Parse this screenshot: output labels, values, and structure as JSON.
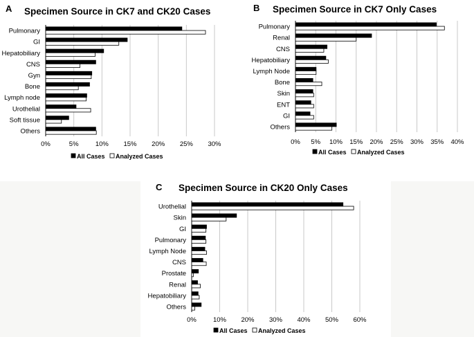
{
  "chart_data": [
    {
      "id": "A",
      "type": "bar",
      "orientation": "horizontal",
      "panel_label": "A",
      "title": "Specimen Source in CK7 and CK20 Cases",
      "categories": [
        "Pulmonary",
        "GI",
        "Hepatobiliary",
        "CNS",
        "Gyn",
        "Bone",
        "Lymph node",
        "Urothelial",
        "Soft tissue",
        "Others"
      ],
      "series": [
        {
          "name": "All Cases",
          "color": "#000000",
          "values": [
            24.2,
            14.5,
            10.3,
            8.9,
            8.2,
            7.8,
            7.3,
            5.4,
            4.1,
            8.9
          ]
        },
        {
          "name": "Analyzed Cases",
          "color": "#ffffff",
          "values": [
            28.4,
            13.0,
            8.8,
            6.1,
            8.1,
            5.8,
            7.2,
            8.0,
            2.8,
            9.0
          ]
        }
      ],
      "xlim": [
        0,
        30
      ],
      "xticks": [
        "0%",
        "5%",
        "10%",
        "15%",
        "20%",
        "25%",
        "30%"
      ],
      "legend": [
        "All Cases",
        "Analyzed Cases"
      ],
      "legend_position": "bottom",
      "grid": true
    },
    {
      "id": "B",
      "type": "bar",
      "orientation": "horizontal",
      "panel_label": "B",
      "title": "Specimen Source in CK7 Only Cases",
      "categories": [
        "Pulmonary",
        "Renal",
        "CNS",
        "Hepatobiliary",
        "Lymph Node",
        "Bone",
        "Skin",
        "ENT",
        "GI",
        "Others"
      ],
      "series": [
        {
          "name": "All Cases",
          "color": "#000000",
          "values": [
            34.8,
            18.8,
            7.8,
            7.5,
            5.1,
            4.3,
            4.3,
            3.8,
            3.6,
            10.1
          ]
        },
        {
          "name": "Analyzed Cases",
          "color": "#ffffff",
          "values": [
            36.8,
            15.0,
            7.0,
            8.1,
            5.1,
            6.5,
            4.5,
            4.5,
            4.5,
            9.0
          ]
        }
      ],
      "xlim": [
        0,
        40
      ],
      "xticks": [
        "0%",
        "5%",
        "10%",
        "15%",
        "20%",
        "25%",
        "30%",
        "35%",
        "40%"
      ],
      "legend": [
        "All Cases",
        "Analyzed Cases"
      ],
      "legend_position": "bottom",
      "grid": true
    },
    {
      "id": "C",
      "type": "bar",
      "orientation": "horizontal",
      "panel_label": "C",
      "title": "Specimen Source in CK20 Only Cases",
      "categories": [
        "Urothelial",
        "Skin",
        "GI",
        "Pulmonary",
        "Lymph Node",
        "CNS",
        "Prostate",
        "Renal",
        "Hepatobiliary",
        "Others"
      ],
      "series": [
        {
          "name": "All Cases",
          "color": "#000000",
          "values": [
            54.0,
            16.0,
            5.3,
            4.9,
            4.7,
            4.0,
            2.4,
            2.1,
            2.3,
            3.4
          ]
        },
        {
          "name": "Analyzed Cases",
          "color": "#ffffff",
          "values": [
            57.8,
            12.3,
            5.1,
            5.1,
            5.3,
            5.2,
            0.6,
            3.1,
            2.7,
            1.1
          ]
        }
      ],
      "xlim": [
        0,
        60
      ],
      "xticks": [
        "0%",
        "10%",
        "20%",
        "30%",
        "40%",
        "50%",
        "60%"
      ],
      "legend": [
        "All Cases",
        "Analyzed Cases"
      ],
      "legend_position": "bottom",
      "grid": true
    }
  ]
}
